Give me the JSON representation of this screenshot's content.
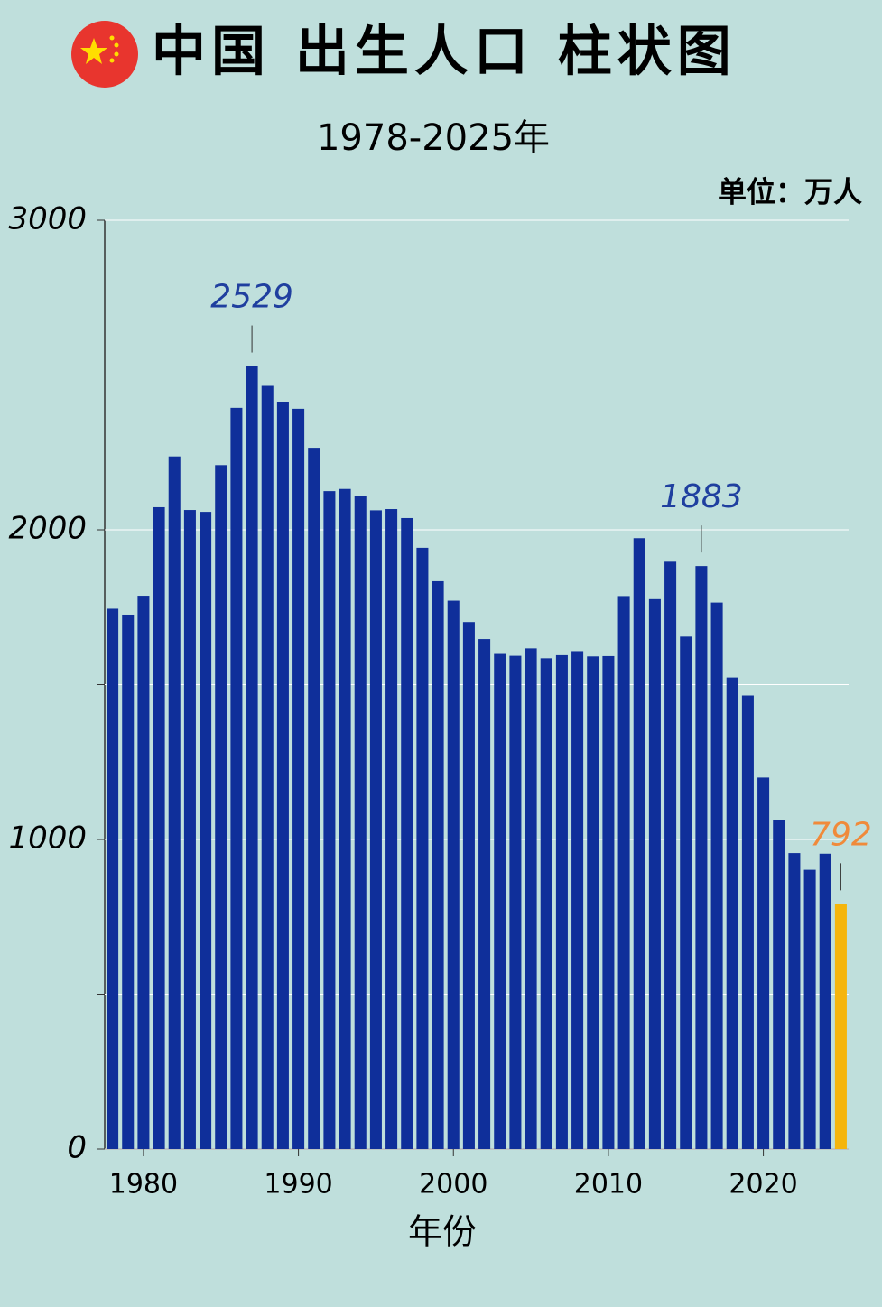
{
  "chart_data": {
    "type": "bar",
    "title": "中国 出生人口 柱状图",
    "subtitle": "1978-2025年",
    "unit_label": "单位：万人",
    "x_label": "年份",
    "x": [
      1978,
      1979,
      1980,
      1981,
      1982,
      1983,
      1984,
      1985,
      1986,
      1987,
      1988,
      1989,
      1990,
      1991,
      1992,
      1993,
      1994,
      1995,
      1996,
      1997,
      1998,
      1999,
      2000,
      2001,
      2002,
      2003,
      2004,
      2005,
      2006,
      2007,
      2008,
      2009,
      2010,
      2011,
      2012,
      2013,
      2014,
      2015,
      2016,
      2017,
      2018,
      2019,
      2020,
      2021,
      2022,
      2023,
      2024,
      2025
    ],
    "values": [
      1745,
      1726,
      1787,
      2073,
      2237,
      2064,
      2058,
      2209,
      2394,
      2529,
      2465,
      2414,
      2391,
      2265,
      2125,
      2132,
      2110,
      2063,
      2067,
      2038,
      1942,
      1834,
      1771,
      1702,
      1647,
      1599,
      1593,
      1617,
      1585,
      1595,
      1608,
      1591,
      1592,
      1786,
      1973,
      1776,
      1897,
      1655,
      1883,
      1765,
      1523,
      1465,
      1200,
      1062,
      956,
      902,
      954,
      792
    ],
    "color": "#0f2f9a",
    "highlight_color": "#f5b50c",
    "highlight_x": [
      2025
    ],
    "xlim": [
      1977.5,
      2025.5
    ],
    "xticks": [
      1980,
      1990,
      2000,
      2010,
      2020
    ],
    "ylim": [
      0,
      3000
    ],
    "yticks": [
      0,
      1000,
      2000,
      3000
    ],
    "minor_yticks": [
      500,
      1500,
      2500
    ],
    "grid": true,
    "annotations": [
      {
        "x": 1987,
        "value": 2529,
        "color": "#1f3f9f"
      },
      {
        "x": 2016,
        "value": 1883,
        "color": "#1f3f9f"
      },
      {
        "x": 2025,
        "value": 792,
        "color": "#f08a3a"
      }
    ]
  }
}
